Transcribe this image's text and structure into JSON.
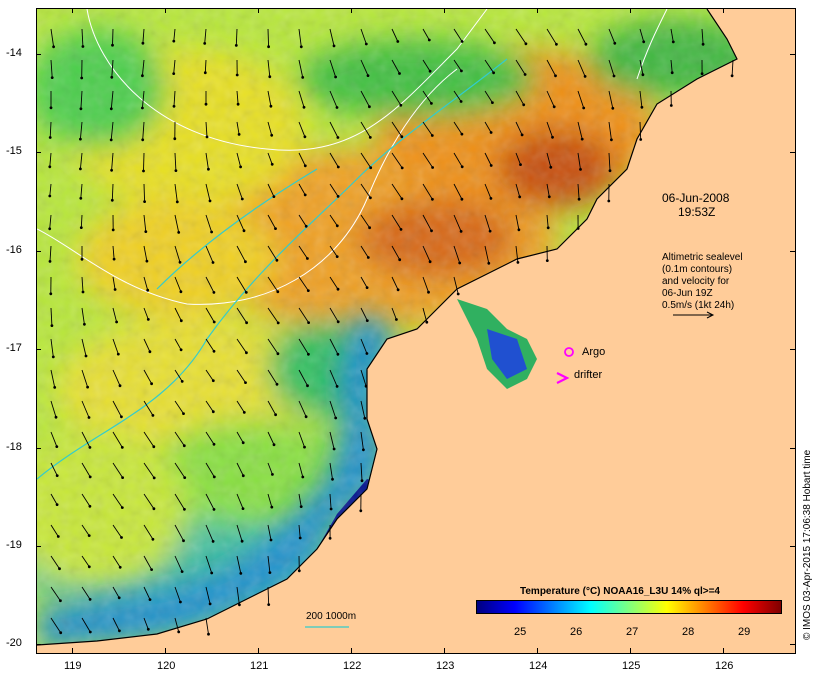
{
  "date_label": "06-Jun-2008",
  "time_label": "19:53Z",
  "altimetry_note": {
    "line1": "Altimetric sealevel",
    "line2": "(0.1m contours)",
    "line3": "and velocity for",
    "line4": "06-Jun 19Z",
    "line5": "0.5m/s (1kt 24h)"
  },
  "legend": {
    "argo_label": "Argo",
    "drifter_label": "drifter",
    "bathymetry_label": "200  1000m"
  },
  "colorbar": {
    "title": "Temperature (°C) NOAA16_L3U 14% ql>=4",
    "ticks": [
      "25",
      "26",
      "27",
      "28",
      "29"
    ],
    "colors": [
      "#00007f",
      "#0000ff",
      "#007fff",
      "#00ffff",
      "#7fff7f",
      "#ffff00",
      "#ff7f00",
      "#ff0000",
      "#7f0000"
    ]
  },
  "credit": "© IMOS 03-Apr-2015 17:06:38 Hobart time",
  "axes": {
    "x_ticks": [
      "119",
      "120",
      "121",
      "122",
      "123",
      "124",
      "125",
      "126"
    ],
    "y_ticks": [
      "-14",
      "-15",
      "-16",
      "-17",
      "-18",
      "-19",
      "-20"
    ]
  },
  "colors": {
    "land": "#ffcc99",
    "argo": "#ff00ff",
    "drifter": "#ff00ff",
    "bathymetry": "#33cccc",
    "contour": "#ffffff"
  }
}
